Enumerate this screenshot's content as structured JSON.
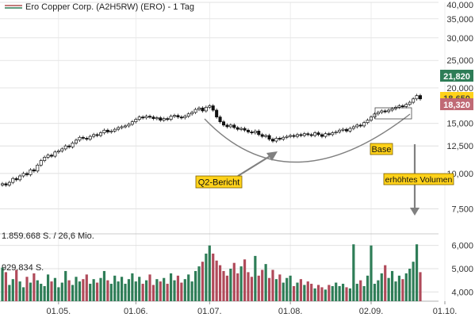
{
  "legend": {
    "label": "Ero Copper Corp. (A2H5RW) (ERO) - 1 Tag",
    "color": "#b05050"
  },
  "colors": {
    "up": "#2e7d57",
    "down": "#b04a5a",
    "wick": "#222222",
    "grid": "#d6d6d6",
    "annotation": "#808080",
    "note_fill": "#ffd21a"
  },
  "chart_data": [
    {
      "type": "candlestick",
      "title": "",
      "y_scale": "log",
      "ylim": [
        7200,
        40000
      ],
      "y_ticks": [
        {
          "value": 40000,
          "label": "40,000"
        },
        {
          "value": 35000,
          "label": "35,000"
        },
        {
          "value": 30000,
          "label": "30,000"
        },
        {
          "value": 25000,
          "label": "25,000"
        },
        {
          "value": 20000,
          "label": "20,000"
        },
        {
          "value": 15000,
          "label": "15,000"
        },
        {
          "value": 12500,
          "label": "12,500"
        },
        {
          "value": 10000,
          "label": "10,000"
        },
        {
          "value": 7500,
          "label": "7,500"
        }
      ],
      "x_ticks": [
        "01.05.",
        "01.06.",
        "01.07.",
        "01.08.",
        "02.09.",
        "01.10."
      ],
      "x_tick_index": [
        16,
        38,
        59,
        82,
        105,
        126
      ],
      "price_badges": [
        {
          "label": "21,820",
          "value": 21820,
          "color": "#2e7d57"
        },
        {
          "label": "18,650",
          "value": 18650,
          "color": "#ffd21a"
        },
        {
          "label": "18,320",
          "value": 18320,
          "color": "#c06a75"
        }
      ],
      "closes": [
        9200,
        9100,
        9300,
        9600,
        9500,
        9800,
        10000,
        9900,
        10300,
        10200,
        10700,
        11100,
        11400,
        11600,
        11500,
        11900,
        12000,
        12200,
        12500,
        12400,
        12800,
        13100,
        13400,
        13300,
        13200,
        13500,
        13700,
        13600,
        13900,
        14200,
        14000,
        14100,
        14300,
        14500,
        14600,
        14700,
        14900,
        15200,
        15500,
        15800,
        15700,
        15900,
        15800,
        15600,
        15700,
        15400,
        15600,
        15500,
        15900,
        16000,
        15800,
        15700,
        15900,
        16200,
        16400,
        16800,
        17000,
        16600,
        17100,
        17300,
        16700,
        15800,
        15200,
        14800,
        14600,
        14800,
        14500,
        14300,
        14400,
        14200,
        14000,
        13900,
        14100,
        13700,
        13500,
        13600,
        13200,
        13000,
        13300,
        13200,
        13400,
        13500,
        13600,
        13500,
        13700,
        13600,
        13800,
        13700,
        13600,
        13900,
        13700,
        13500,
        13800,
        13700,
        13900,
        14000,
        14200,
        14300,
        14100,
        14400,
        14600,
        14800,
        14700,
        15100,
        15400,
        15800,
        16200,
        16400,
        16600,
        16500,
        16700,
        16900,
        17100,
        17300,
        17200,
        17500,
        17800,
        18300,
        18800,
        18300
      ],
      "volume": {
        "unit_label": "S.",
        "ylim": [
          3600,
          6400
        ],
        "y_ticks": [
          {
            "value": 6000,
            "label": "6,000"
          },
          {
            "value": 5000,
            "label": "5,000"
          },
          {
            "value": 4000,
            "label": "4,000"
          }
        ],
        "note_top": "1.859.668 S. / 26,6 Mio.",
        "note_avg": "929.834 S.",
        "values": [
          5050,
          4850,
          4300,
          4550,
          4950,
          4450,
          4200,
          4650,
          4400,
          4800,
          4500,
          4350,
          4250,
          4750,
          4450,
          4600,
          4200,
          4400,
          4900,
          4500,
          4300,
          4650,
          4450,
          4550,
          4750,
          4350,
          4550,
          4400,
          4600,
          4900,
          4500,
          4350,
          4700,
          4450,
          4650,
          4350,
          4550,
          4800,
          4450,
          4650,
          4350,
          4500,
          4750,
          4300,
          4550,
          4450,
          4600,
          4350,
          4800,
          4500,
          4700,
          4400,
          4550,
          4750,
          4450,
          4900,
          5100,
          5300,
          5650,
          6000,
          5650,
          5350,
          5150,
          4900,
          4700,
          5000,
          5250,
          4800,
          5100,
          5400,
          4850,
          4650,
          5550,
          4700,
          4950,
          5200,
          4600,
          4950,
          4550,
          4750,
          4400,
          4600,
          4700,
          4250,
          4400,
          4550,
          4300,
          4450,
          4350,
          4150,
          4300,
          4200,
          4100,
          4300,
          4250,
          4400,
          4250,
          4350,
          4200,
          4150,
          6050,
          4350,
          4500,
          4250,
          4700,
          6000,
          4350,
          4500,
          4800,
          5150,
          4600,
          4900,
          4450,
          4700,
          4550,
          4800,
          5000,
          5300,
          6050,
          4850
        ]
      }
    }
  ],
  "annotations": {
    "q2": "Q2-Bericht",
    "base": "Base",
    "volume": "erhöhtes Volumen"
  }
}
